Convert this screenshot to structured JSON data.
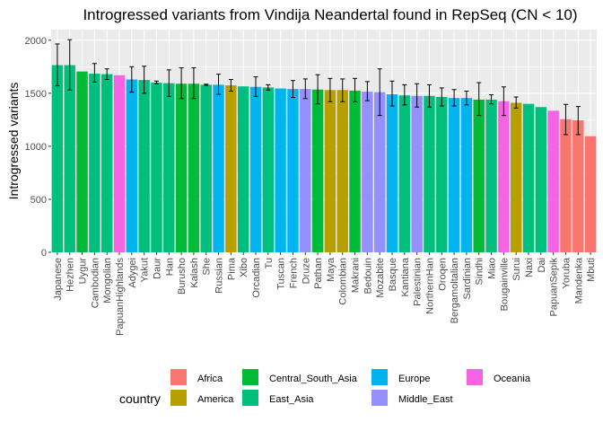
{
  "chart_data": {
    "type": "bar",
    "title": "Introgressed variants from Vindija Neandertal found in RepSeq (CN < 10)",
    "xlabel": "",
    "ylabel": "Introgressed variants",
    "ylim": [
      0,
      2100
    ],
    "yticks": [
      0,
      500,
      1000,
      1500,
      2000
    ],
    "grid": true,
    "legend_title": "country",
    "legend_position": "bottom",
    "groups": [
      {
        "name": "Africa",
        "color": "#F8766D"
      },
      {
        "name": "America",
        "color": "#B79F00"
      },
      {
        "name": "Central_South_Asia",
        "color": "#00BA38"
      },
      {
        "name": "East_Asia",
        "color": "#00BF7D"
      },
      {
        "name": "Europe",
        "color": "#00B4F0"
      },
      {
        "name": "Middle_East",
        "color": "#9590FF"
      },
      {
        "name": "Oceania",
        "color": "#F564E3"
      }
    ],
    "bars": [
      {
        "category": "Japanese",
        "value": 1765,
        "error": [
          1570,
          1965
        ],
        "group": "East_Asia"
      },
      {
        "category": "Hezhen",
        "value": 1765,
        "error": [
          1530,
          2005
        ],
        "group": "East_Asia"
      },
      {
        "category": "Uygur",
        "value": 1705,
        "error": null,
        "group": "Central_South_Asia"
      },
      {
        "category": "Cambodian",
        "value": 1685,
        "error": [
          1605,
          1780
        ],
        "group": "East_Asia"
      },
      {
        "category": "Mongolian",
        "value": 1680,
        "error": [
          1630,
          1730
        ],
        "group": "East_Asia"
      },
      {
        "category": "PapuanHighlands",
        "value": 1670,
        "error": null,
        "group": "Oceania"
      },
      {
        "category": "Adygei",
        "value": 1630,
        "error": [
          1510,
          1750
        ],
        "group": "Europe"
      },
      {
        "category": "Yakut",
        "value": 1625,
        "error": [
          1500,
          1755
        ],
        "group": "East_Asia"
      },
      {
        "category": "Daur",
        "value": 1600,
        "error": [
          1590,
          1615
        ],
        "group": "East_Asia"
      },
      {
        "category": "Han",
        "value": 1595,
        "error": [
          1470,
          1720
        ],
        "group": "East_Asia"
      },
      {
        "category": "Burusho",
        "value": 1590,
        "error": [
          1450,
          1740
        ],
        "group": "Central_South_Asia"
      },
      {
        "category": "Kalash",
        "value": 1590,
        "error": [
          1450,
          1740
        ],
        "group": "Central_South_Asia"
      },
      {
        "category": "She",
        "value": 1580,
        "error": [
          1575,
          1585
        ],
        "group": "East_Asia"
      },
      {
        "category": "Russian",
        "value": 1580,
        "error": [
          1490,
          1680
        ],
        "group": "Europe"
      },
      {
        "category": "Pima",
        "value": 1575,
        "error": [
          1520,
          1630
        ],
        "group": "America"
      },
      {
        "category": "Xibo",
        "value": 1565,
        "error": null,
        "group": "East_Asia"
      },
      {
        "category": "Orcadian",
        "value": 1560,
        "error": [
          1470,
          1655
        ],
        "group": "Europe"
      },
      {
        "category": "Tu",
        "value": 1555,
        "error": [
          1530,
          1580
        ],
        "group": "East_Asia"
      },
      {
        "category": "Tuscan",
        "value": 1545,
        "error": null,
        "group": "Europe"
      },
      {
        "category": "French",
        "value": 1540,
        "error": [
          1460,
          1620
        ],
        "group": "Europe"
      },
      {
        "category": "Druze",
        "value": 1540,
        "error": [
          1450,
          1635
        ],
        "group": "Middle_East"
      },
      {
        "category": "Pathan",
        "value": 1535,
        "error": [
          1400,
          1675
        ],
        "group": "Central_South_Asia"
      },
      {
        "category": "Maya",
        "value": 1530,
        "error": [
          1420,
          1640
        ],
        "group": "America"
      },
      {
        "category": "Colombian",
        "value": 1530,
        "error": [
          1420,
          1635
        ],
        "group": "America"
      },
      {
        "category": "Makrani",
        "value": 1525,
        "error": [
          1420,
          1640
        ],
        "group": "Central_South_Asia"
      },
      {
        "category": "Bedouin",
        "value": 1515,
        "error": [
          1430,
          1610
        ],
        "group": "Middle_East"
      },
      {
        "category": "Mozabite",
        "value": 1510,
        "error": [
          1290,
          1730
        ],
        "group": "Middle_East"
      },
      {
        "category": "Basque",
        "value": 1490,
        "error": [
          1380,
          1615
        ],
        "group": "Europe"
      },
      {
        "category": "Kantiana",
        "value": 1480,
        "error": [
          1390,
          1580
        ],
        "group": "East_Asia"
      },
      {
        "category": "Palestinian",
        "value": 1475,
        "error": [
          1370,
          1590
        ],
        "group": "Middle_East"
      },
      {
        "category": "NorthernHan",
        "value": 1475,
        "error": [
          1370,
          1580
        ],
        "group": "East_Asia"
      },
      {
        "category": "Oroqen",
        "value": 1465,
        "error": [
          1380,
          1550
        ],
        "group": "East_Asia"
      },
      {
        "category": "Bergamoltalian",
        "value": 1455,
        "error": [
          1380,
          1535
        ],
        "group": "Europe"
      },
      {
        "category": "Sardinian",
        "value": 1455,
        "error": [
          1390,
          1520
        ],
        "group": "Europe"
      },
      {
        "category": "Sindhi",
        "value": 1440,
        "error": [
          1290,
          1600
        ],
        "group": "Central_South_Asia"
      },
      {
        "category": "Miao",
        "value": 1440,
        "error": [
          1400,
          1485
        ],
        "group": "East_Asia"
      },
      {
        "category": "Bougainville",
        "value": 1425,
        "error": [
          1290,
          1560
        ],
        "group": "Oceania"
      },
      {
        "category": "Surui",
        "value": 1410,
        "error": [
          1360,
          1465
        ],
        "group": "America"
      },
      {
        "category": "Naxi",
        "value": 1400,
        "error": null,
        "group": "East_Asia"
      },
      {
        "category": "Dai",
        "value": 1370,
        "error": null,
        "group": "East_Asia"
      },
      {
        "category": "PapuanSepik",
        "value": 1335,
        "error": null,
        "group": "Oceania"
      },
      {
        "category": "Yoruba",
        "value": 1255,
        "error": [
          1110,
          1395
        ],
        "group": "Africa"
      },
      {
        "category": "Mandenka",
        "value": 1245,
        "error": [
          1110,
          1375
        ],
        "group": "Africa"
      },
      {
        "category": "Mbuti",
        "value": 1095,
        "error": null,
        "group": "Africa"
      }
    ]
  }
}
